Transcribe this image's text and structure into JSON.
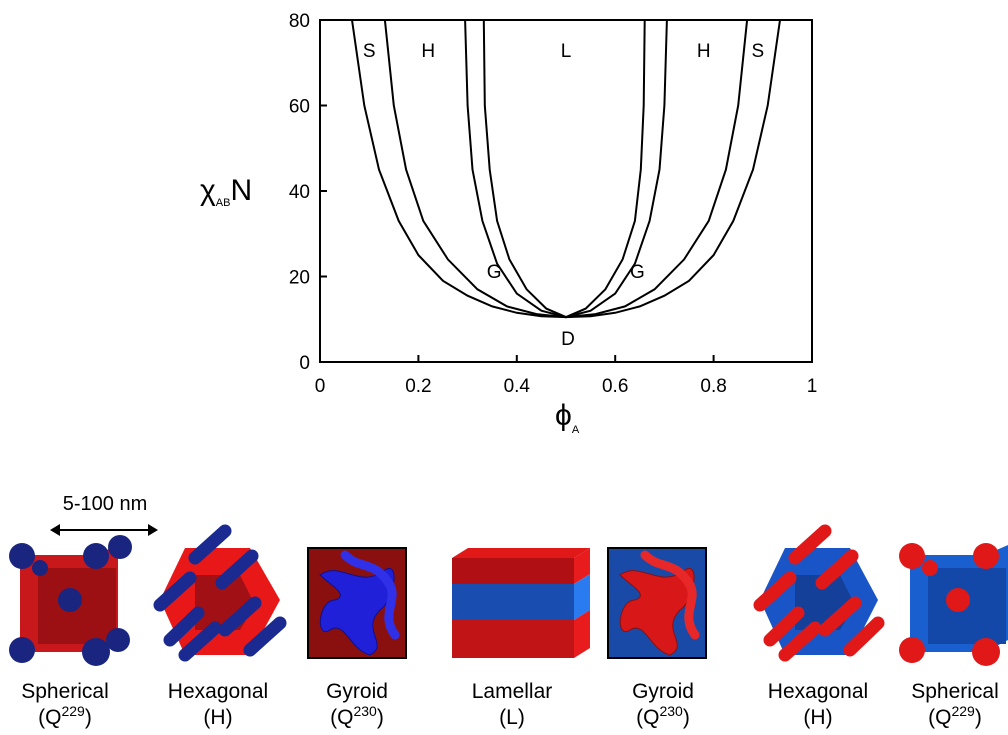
{
  "chart_data": {
    "type": "line",
    "xlim": [
      0,
      1
    ],
    "ylim": [
      0,
      80
    ],
    "xticks": [
      0,
      0.2,
      0.4,
      0.6,
      0.8,
      1
    ],
    "yticks": [
      0,
      20,
      40,
      60,
      80
    ],
    "ylabel": {
      "main": "χ",
      "sub": "AB",
      "tail": "N"
    },
    "xlabel": {
      "main": "ϕ",
      "sub": "A"
    },
    "color": "#000000",
    "series": [
      {
        "x": [
          0.065,
          0.09,
          0.12,
          0.16,
          0.2,
          0.25,
          0.3,
          0.35,
          0.4,
          0.45,
          0.5,
          0.55,
          0.6,
          0.65,
          0.7,
          0.75,
          0.8,
          0.84,
          0.88,
          0.91,
          0.935
        ],
        "values": [
          80,
          60,
          45,
          33,
          25,
          19,
          15.5,
          13,
          11.5,
          10.7,
          10.5,
          10.7,
          11.5,
          13,
          15.5,
          19,
          25,
          33,
          45,
          60,
          80
        ]
      },
      {
        "x": [
          0.132,
          0.15,
          0.175,
          0.21,
          0.26,
          0.32,
          0.38,
          0.44,
          0.5,
          0.56,
          0.62,
          0.68,
          0.74,
          0.79,
          0.825,
          0.85,
          0.868
        ],
        "values": [
          80,
          60,
          45,
          33,
          24,
          17,
          13,
          11.2,
          10.5,
          11.2,
          13,
          17,
          24,
          33,
          45,
          60,
          80
        ]
      },
      {
        "x": [
          0.295,
          0.3,
          0.31,
          0.33,
          0.36,
          0.4,
          0.45,
          0.5,
          0.55,
          0.6,
          0.64,
          0.67,
          0.69,
          0.7,
          0.705
        ],
        "values": [
          80,
          60,
          45,
          33,
          23,
          16,
          12,
          10.5,
          12,
          16,
          23,
          33,
          45,
          60,
          80
        ]
      },
      {
        "x": [
          0.333,
          0.335,
          0.345,
          0.36,
          0.385,
          0.42,
          0.46,
          0.5,
          0.54,
          0.58,
          0.615,
          0.64,
          0.652,
          0.658,
          0.66
        ],
        "values": [
          80,
          60,
          45,
          33,
          24,
          17,
          12.5,
          10.5,
          12.5,
          17,
          24,
          33,
          45,
          60,
          80
        ]
      }
    ],
    "annotations": [
      {
        "text": "S",
        "x": 0.1,
        "y": 73
      },
      {
        "text": "H",
        "x": 0.22,
        "y": 73
      },
      {
        "text": "L",
        "x": 0.5,
        "y": 73
      },
      {
        "text": "H",
        "x": 0.78,
        "y": 73
      },
      {
        "text": "S",
        "x": 0.89,
        "y": 73
      },
      {
        "text": "G",
        "x": 0.354,
        "y": 21.3
      },
      {
        "text": "G",
        "x": 0.645,
        "y": 21.3
      },
      {
        "text": "D",
        "x": 0.504,
        "y": 5.6
      }
    ]
  },
  "scale_label": "5-100 nm",
  "structures": [
    {
      "name": "Spherical",
      "notation": [
        "(Q",
        "229",
        ")"
      ]
    },
    {
      "name": "Hexagonal",
      "notation": [
        "(H)"
      ]
    },
    {
      "name": "Gyroid",
      "notation": [
        "(Q",
        "230",
        ")"
      ]
    },
    {
      "name": "Lamellar",
      "notation": [
        "(L)"
      ]
    },
    {
      "name": "Gyroid",
      "notation": [
        "(Q",
        "230",
        ")"
      ]
    },
    {
      "name": "Hexagonal",
      "notation": [
        "(H)"
      ]
    },
    {
      "name": "Spherical",
      "notation": [
        "(Q",
        "229",
        ")"
      ]
    }
  ]
}
